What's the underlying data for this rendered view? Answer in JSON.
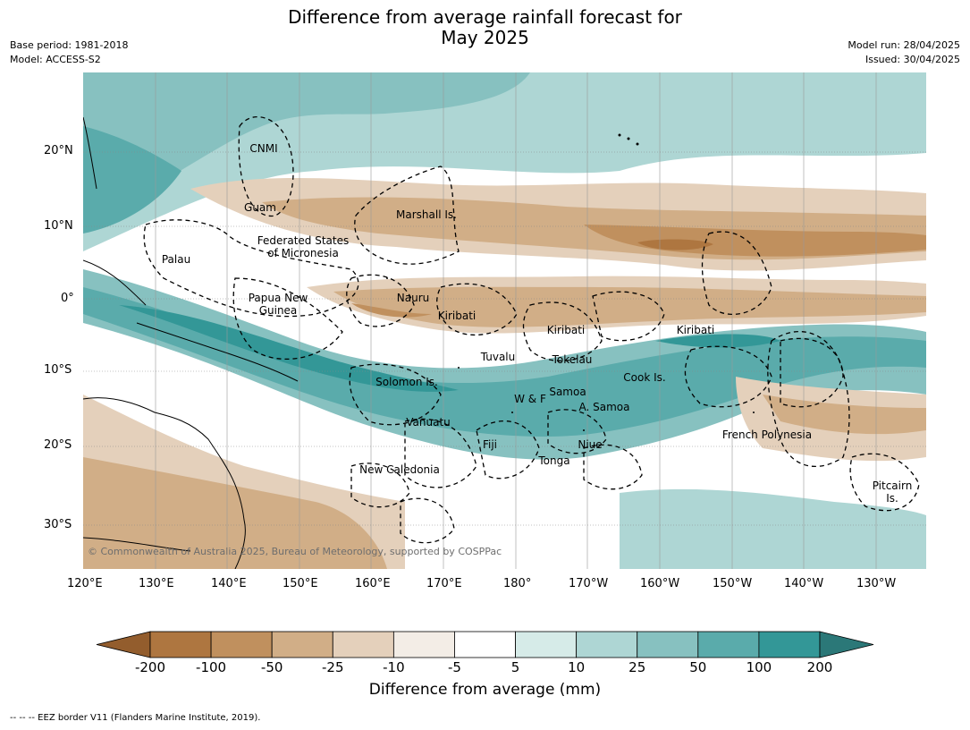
{
  "title_line1": "Difference from average rainfall forecast for",
  "title_line2": "May 2025",
  "meta_left": {
    "base_period": "Base period: 1981-2018",
    "model": "Model: ACCESS-S2"
  },
  "meta_right": {
    "model_run": "Model run: 28/04/2025",
    "issued": "Issued: 30/04/2025"
  },
  "map": {
    "lon_labels": [
      "120°E",
      "130°E",
      "140°E",
      "150°E",
      "160°E",
      "170°E",
      "180°",
      "170°W",
      "160°W",
      "150°W",
      "140°W",
      "130°W"
    ],
    "lat_labels": [
      "20°N",
      "10°N",
      "0°",
      "10°S",
      "20°S",
      "30°S"
    ],
    "region_labels": {
      "cnmi": "CNMI",
      "guam": "Guam",
      "marshall": "Marshall Is.",
      "fsm1": "Federated States",
      "fsm2": "of Micronesia",
      "palau": "Palau",
      "png1": "Papua New",
      "png2": "Guinea",
      "nauru": "Nauru",
      "kiribati_w": "Kiribati",
      "kiribati_c": "Kiribati",
      "kiribati_e": "Kiribati",
      "tuvalu": "Tuvalu",
      "tokelau": "Tokelau",
      "cook": "Cook Is.",
      "solomon": "Solomon Is.",
      "samoa": "Samoa",
      "wf": "W & F",
      "asamoa": "A. Samoa",
      "vanuatu": "Vanuatu",
      "fiji": "Fiji",
      "niue": "Niue",
      "tonga": "Tonga",
      "frenchpoly": "French Polynesia",
      "newcal": "New Caledonia",
      "pitcairn1": "Pitcairn",
      "pitcairn2": "Is."
    },
    "copyright": "© Commonwealth of Australia 2025, Bureau of Meteorology, supported by COSPPac"
  },
  "colorbar": {
    "ticks": [
      "-200",
      "-100",
      "-50",
      "-25",
      "-10",
      "-5",
      "5",
      "10",
      "25",
      "50",
      "100",
      "200"
    ],
    "colors": [
      "#ae7640",
      "#c0905e",
      "#d1ae87",
      "#e4d0bb",
      "#f3ede6",
      "#ffffff",
      "#d6ebe8",
      "#aed6d4",
      "#87c1c0",
      "#5aabab",
      "#339797"
    ],
    "low_extend_color": "#935d2d",
    "high_extend_color": "#2b7878",
    "label": "Difference from average (mm)"
  },
  "footnote": "-- -- -- EEZ border V11 (Flanders Marine Institute, 2019)."
}
